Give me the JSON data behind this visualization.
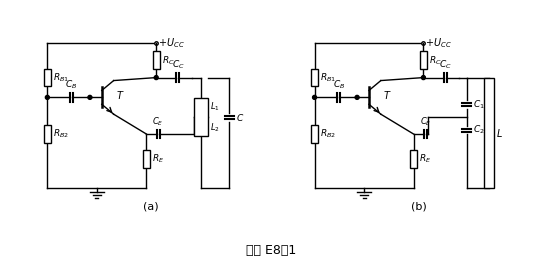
{
  "title": "题图 E8－1",
  "title_fontsize": 10,
  "background_color": "#ffffff",
  "line_color": "#000000",
  "label_a": "(a)",
  "label_b": "(b)",
  "labels": {
    "RB1": "R_{B1}",
    "RB2": "R_{B2}",
    "RC": "R_C",
    "RE": "R_E",
    "CB": "C_B",
    "CC": "C_C",
    "CE": "C_E",
    "C": "C",
    "C1": "C_1",
    "C2": "C_2",
    "L": "L",
    "L1": "L_1",
    "L2": "L_2",
    "T": "T",
    "UCC": "+U_{CC}"
  }
}
